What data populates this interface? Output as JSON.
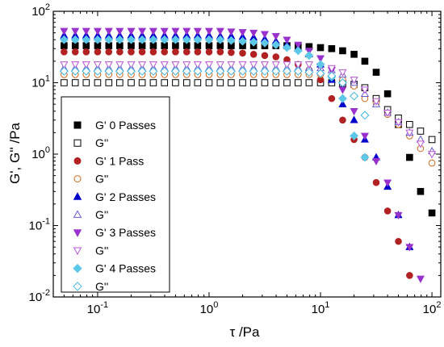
{
  "chart_data": {
    "type": "scatter",
    "x_scale": "log",
    "y_scale": "log",
    "xlim": [
      0.04,
      120
    ],
    "ylim": [
      0.01,
      100
    ],
    "xlabel": "τ /Pa",
    "ylabel": "G', G'' /Pa",
    "x_ticks": [
      {
        "base": "10",
        "exp": "-1",
        "value": 0.1
      },
      {
        "base": "10",
        "exp": "0",
        "value": 1
      },
      {
        "base": "10",
        "exp": "1",
        "value": 10
      },
      {
        "base": "10",
        "exp": "2",
        "value": 100
      }
    ],
    "y_ticks": [
      {
        "base": "10",
        "exp": "-2",
        "value": 0.01
      },
      {
        "base": "10",
        "exp": "-1",
        "value": 0.1
      },
      {
        "base": "10",
        "exp": "0",
        "value": 1
      },
      {
        "base": "10",
        "exp": "1",
        "value": 10
      },
      {
        "base": "10",
        "exp": "2",
        "value": 100
      }
    ],
    "legend_position": "lower-left",
    "series": [
      {
        "name": "G' 0 Passes",
        "marker": "square",
        "filled": true,
        "color": "#000000",
        "x": [
          0.05,
          0.063,
          0.079,
          0.1,
          0.126,
          0.158,
          0.2,
          0.251,
          0.316,
          0.398,
          0.5,
          0.63,
          0.79,
          1,
          1.26,
          1.58,
          2,
          2.51,
          3.16,
          3.98,
          5,
          6.3,
          7.9,
          10,
          12.6,
          15.8,
          20,
          25,
          31.6,
          40,
          50,
          63,
          79,
          100
        ],
        "y": [
          33,
          33,
          33,
          33,
          33,
          33,
          33,
          33,
          33,
          33,
          33,
          33,
          33,
          33,
          33,
          33,
          33,
          33,
          33,
          33,
          33,
          32,
          32,
          31,
          30,
          28,
          25,
          20,
          14,
          7,
          2.6,
          0.9,
          0.3,
          0.15
        ]
      },
      {
        "name": "G''",
        "marker": "square",
        "filled": false,
        "color": "#000000",
        "x": [
          0.05,
          0.063,
          0.079,
          0.1,
          0.126,
          0.158,
          0.2,
          0.251,
          0.316,
          0.398,
          0.5,
          0.63,
          0.79,
          1,
          1.26,
          1.58,
          2,
          2.51,
          3.16,
          3.98,
          5,
          6.3,
          7.9,
          10,
          12.6,
          15.8,
          20,
          25,
          31.6,
          40,
          50,
          63,
          79,
          100
        ],
        "y": [
          10,
          10,
          10,
          10,
          10,
          10,
          10,
          10,
          10,
          10,
          10,
          10,
          10,
          10,
          10,
          10,
          10,
          10,
          10,
          10,
          10,
          10,
          10,
          10,
          10,
          9.8,
          9.5,
          8.5,
          6,
          4.2,
          3.2,
          2.6,
          2.1,
          1.6
        ]
      },
      {
        "name": "G' 1 Pass",
        "marker": "circle",
        "filled": true,
        "color": "#b22222",
        "x": [
          0.05,
          0.063,
          0.079,
          0.1,
          0.126,
          0.158,
          0.2,
          0.251,
          0.316,
          0.398,
          0.5,
          0.63,
          0.79,
          1,
          1.26,
          1.58,
          2,
          2.51,
          3.16,
          3.98,
          5,
          6.3,
          7.9,
          10,
          12.6,
          15.8,
          20,
          25,
          31.6,
          40,
          50,
          63
        ],
        "y": [
          27,
          27,
          27,
          27,
          27,
          27,
          27,
          27,
          27,
          27,
          27,
          27,
          27,
          27,
          27,
          26.5,
          26,
          25,
          24,
          23,
          21,
          18,
          15,
          11,
          6,
          3,
          1.6,
          0.9,
          0.4,
          0.16,
          0.06,
          0.02
        ]
      },
      {
        "name": "G''",
        "marker": "circle",
        "filled": false,
        "color": "#d2691e",
        "x": [
          0.05,
          0.063,
          0.079,
          0.1,
          0.126,
          0.158,
          0.2,
          0.251,
          0.316,
          0.398,
          0.5,
          0.63,
          0.79,
          1,
          1.26,
          1.58,
          2,
          2.51,
          3.16,
          3.98,
          5,
          6.3,
          7.9,
          10,
          12.6,
          15.8,
          20,
          25,
          31.6,
          40,
          50,
          63,
          79,
          100
        ],
        "y": [
          13,
          13,
          13,
          13,
          13,
          13,
          13,
          13,
          13,
          13,
          13,
          13,
          13,
          13,
          13,
          13,
          13,
          13,
          13,
          13,
          13,
          13,
          13,
          13,
          12,
          11,
          9,
          6,
          5.2,
          3.6,
          2.6,
          1.8,
          1.2,
          0.75
        ]
      },
      {
        "name": "G' 2 Passes",
        "marker": "triangle-up",
        "filled": true,
        "color": "#0000cd",
        "x": [
          0.05,
          0.063,
          0.079,
          0.1,
          0.126,
          0.158,
          0.2,
          0.251,
          0.316,
          0.398,
          0.5,
          0.63,
          0.79,
          1,
          1.26,
          1.58,
          2,
          2.51,
          3.16,
          3.98,
          5,
          6.3,
          7.9,
          10,
          12.6,
          15.8,
          20,
          25,
          31.6,
          40,
          50,
          63
        ],
        "y": [
          46,
          46,
          46,
          46,
          46,
          46,
          46,
          46,
          46,
          46,
          46,
          46,
          46,
          46,
          45,
          45,
          44,
          43,
          41,
          38,
          34,
          30,
          25,
          18,
          11,
          5,
          3,
          1.6,
          0.9,
          0.35,
          0.14,
          0.05
        ]
      },
      {
        "name": "G''",
        "marker": "triangle-up",
        "filled": false,
        "color": "#6a5acd",
        "x": [
          0.05,
          0.063,
          0.079,
          0.1,
          0.126,
          0.158,
          0.2,
          0.251,
          0.316,
          0.398,
          0.5,
          0.63,
          0.79,
          1,
          1.26,
          1.58,
          2,
          2.51,
          3.16,
          3.98,
          5,
          6.3,
          7.9,
          10,
          12.6,
          15.8,
          20,
          25,
          31.6,
          40,
          50,
          63,
          79,
          100
        ],
        "y": [
          16,
          16,
          16,
          16,
          16,
          16,
          16,
          16,
          16,
          16,
          16,
          16,
          16,
          16,
          16,
          16,
          16,
          16,
          16,
          16,
          16,
          16,
          16,
          16,
          15,
          13,
          10,
          7,
          5,
          3.8,
          2.8,
          2,
          1.6,
          1.1
        ]
      },
      {
        "name": "G' 3 Passes",
        "marker": "triangle-down",
        "filled": true,
        "color": "#9932cc",
        "x": [
          0.05,
          0.063,
          0.079,
          0.1,
          0.126,
          0.158,
          0.2,
          0.251,
          0.316,
          0.398,
          0.5,
          0.63,
          0.79,
          1,
          1.26,
          1.58,
          2,
          2.51,
          3.16,
          3.98,
          5,
          6.3,
          7.9,
          10,
          12.6,
          15.8,
          20,
          25,
          31.6,
          40,
          50,
          63,
          79
        ],
        "y": [
          53,
          53,
          53,
          53,
          53,
          53,
          53,
          53,
          53,
          53,
          53,
          53,
          53,
          53,
          53,
          52,
          51,
          50,
          48,
          45,
          40,
          34,
          28,
          22,
          15,
          8,
          4,
          1.8,
          0.8,
          0.4,
          0.14,
          0.05,
          0.018
        ]
      },
      {
        "name": "G''",
        "marker": "triangle-down",
        "filled": false,
        "color": "#ba55d3",
        "x": [
          0.05,
          0.063,
          0.079,
          0.1,
          0.126,
          0.158,
          0.2,
          0.251,
          0.316,
          0.398,
          0.5,
          0.63,
          0.79,
          1,
          1.26,
          1.58,
          2,
          2.51,
          3.16,
          3.98,
          5,
          6.3,
          7.9,
          10,
          12.6,
          15.8,
          20,
          25,
          31.6,
          40,
          50,
          63,
          79,
          100
        ],
        "y": [
          18,
          18,
          18,
          18,
          18,
          18,
          18,
          18,
          18,
          18,
          18,
          18,
          18,
          18,
          18,
          18,
          18,
          18,
          18,
          18,
          18,
          18,
          18,
          17,
          16,
          14,
          11,
          8,
          5.5,
          3.8,
          2.8,
          2,
          1.4,
          1
        ]
      },
      {
        "name": "G' 4 Passes",
        "marker": "diamond",
        "filled": true,
        "color": "#5ec8e8",
        "x": [
          0.05,
          0.063,
          0.079,
          0.1,
          0.126,
          0.158,
          0.2,
          0.251,
          0.316,
          0.398,
          0.5,
          0.63,
          0.79,
          1,
          1.26,
          1.58,
          2,
          2.51,
          3.16,
          3.98,
          5,
          6.3,
          7.9,
          10,
          12.6,
          15.8,
          20,
          25
        ],
        "y": [
          40,
          40,
          40,
          40,
          40,
          40,
          40,
          40,
          40,
          40,
          40,
          40,
          40,
          40,
          40,
          39,
          38,
          37,
          36,
          34,
          31,
          28,
          24,
          18,
          12,
          6,
          1.8,
          0.9
        ]
      },
      {
        "name": "G''",
        "marker": "diamond",
        "filled": false,
        "color": "#3cb4dc",
        "x": [
          0.05,
          0.063,
          0.079,
          0.1,
          0.126,
          0.158,
          0.2,
          0.251,
          0.316,
          0.398,
          0.5,
          0.63,
          0.79,
          1,
          1.26,
          1.58,
          2,
          2.51,
          3.16,
          3.98,
          5,
          6.3,
          7.9,
          10,
          12.6,
          15.8,
          20,
          25
        ],
        "y": [
          14.5,
          14.5,
          14.5,
          14.5,
          14.5,
          14.5,
          14.5,
          14.5,
          14.5,
          14.5,
          14.5,
          14.5,
          14.5,
          14.5,
          14.5,
          14.5,
          14.5,
          14.5,
          14.5,
          14.5,
          14.5,
          14.5,
          14,
          13.5,
          12.5,
          10,
          6.5,
          3.5
        ]
      }
    ]
  }
}
